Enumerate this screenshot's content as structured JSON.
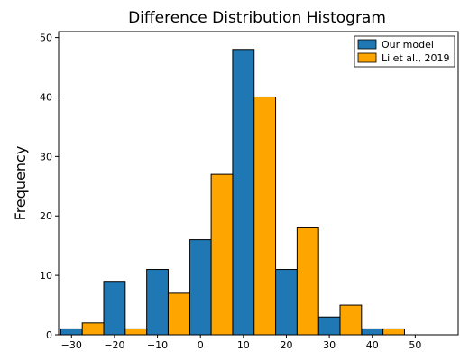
{
  "chart_data": {
    "type": "bar",
    "title": "Difference Distribution Histogram",
    "xlabel": "",
    "ylabel": "Frequency",
    "xlim": [
      -33,
      60
    ],
    "ylim": [
      0,
      51
    ],
    "xticks": [
      -30,
      -20,
      -10,
      0,
      10,
      20,
      30,
      40,
      50
    ],
    "xtick_labels": [
      "−30",
      "−20",
      "−10",
      "0",
      "10",
      "20",
      "30",
      "40",
      "50"
    ],
    "yticks": [
      0,
      10,
      20,
      30,
      40,
      50
    ],
    "bin_width": 10,
    "bin_starts": [
      -32.5,
      -22.5,
      -12.5,
      -2.5,
      7.5,
      17.5,
      27.5,
      37.5,
      47.5
    ],
    "series": [
      {
        "name": "Our model",
        "color": "#1f77b4",
        "values": [
          1,
          9,
          11,
          16,
          48,
          11,
          3,
          1,
          0
        ]
      },
      {
        "name": "Li et al., 2019",
        "color": "#ffa500",
        "values": [
          2,
          1,
          7,
          27,
          40,
          18,
          5,
          1,
          0
        ]
      }
    ],
    "legend": "top-right",
    "grid": false
  }
}
